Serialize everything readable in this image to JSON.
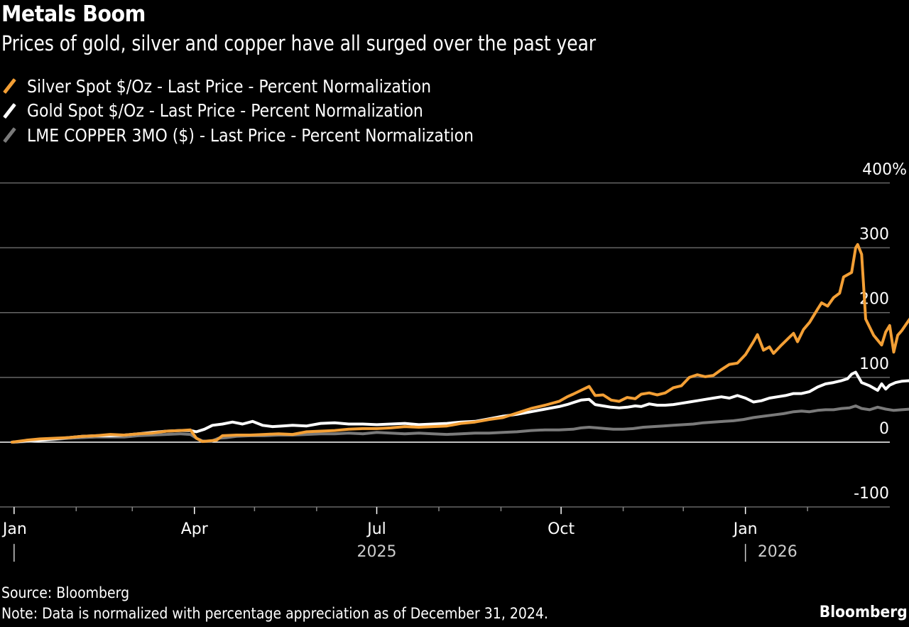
{
  "header": {
    "title": "Metals Boom",
    "subtitle": "Prices of gold, silver and copper have all surged over the past year"
  },
  "footer": {
    "source": "Source: Bloomberg",
    "note": "Note: Data is normalized with percentage appreciation as of December 31, 2024.",
    "brand": "Bloomberg"
  },
  "chart_data": {
    "type": "line",
    "title": "Metals Boom",
    "subtitle": "Prices of gold, silver and copper have all surged over the past year",
    "xlabel": "",
    "ylabel": "",
    "x_unit": "days since 2024-12-31",
    "xlim": [
      0,
      415
    ],
    "ylim": [
      -100,
      400
    ],
    "grid": true,
    "legend_position": "top-left",
    "y_ticks": [
      {
        "value": 400,
        "label": "400%"
      },
      {
        "value": 300,
        "label": "300"
      },
      {
        "value": 200,
        "label": "200"
      },
      {
        "value": 100,
        "label": "100"
      },
      {
        "value": 0,
        "label": "0"
      },
      {
        "value": -100,
        "label": "-100"
      }
    ],
    "x_ticks": [
      {
        "day": 1,
        "label": "Jan",
        "major": true
      },
      {
        "day": 32,
        "label": "",
        "major": false
      },
      {
        "day": 60,
        "label": "",
        "major": false
      },
      {
        "day": 91,
        "label": "Apr",
        "major": true
      },
      {
        "day": 121,
        "label": "",
        "major": false
      },
      {
        "day": 152,
        "label": "",
        "major": false
      },
      {
        "day": 182,
        "label": "Jul",
        "major": true
      },
      {
        "day": 213,
        "label": "",
        "major": false
      },
      {
        "day": 244,
        "label": "",
        "major": false
      },
      {
        "day": 274,
        "label": "Oct",
        "major": true
      },
      {
        "day": 305,
        "label": "",
        "major": false
      },
      {
        "day": 335,
        "label": "",
        "major": false
      },
      {
        "day": 366,
        "label": "Jan",
        "major": true
      },
      {
        "day": 397,
        "label": "",
        "major": false
      }
    ],
    "year_labels": [
      {
        "day": 182,
        "label": "2025"
      },
      {
        "day": 382,
        "label": "2026"
      }
    ],
    "year_separators": [
      1,
      366
    ],
    "series": [
      {
        "name": "Silver Spot $/Oz - Last Price - Percent Normalization",
        "color": "#f39f35",
        "points": [
          [
            0,
            0
          ],
          [
            7,
            3
          ],
          [
            14,
            5
          ],
          [
            21,
            6
          ],
          [
            28,
            7
          ],
          [
            35,
            9
          ],
          [
            42,
            10
          ],
          [
            49,
            12
          ],
          [
            56,
            11
          ],
          [
            63,
            13
          ],
          [
            70,
            14
          ],
          [
            77,
            17
          ],
          [
            84,
            18
          ],
          [
            89,
            19
          ],
          [
            92,
            6
          ],
          [
            95,
            1
          ],
          [
            98,
            2
          ],
          [
            102,
            3
          ],
          [
            105,
            10
          ],
          [
            112,
            11
          ],
          [
            119,
            11
          ],
          [
            126,
            12
          ],
          [
            133,
            13
          ],
          [
            140,
            12
          ],
          [
            147,
            16
          ],
          [
            154,
            17
          ],
          [
            161,
            18
          ],
          [
            168,
            20
          ],
          [
            175,
            21
          ],
          [
            182,
            21
          ],
          [
            189,
            22
          ],
          [
            196,
            24
          ],
          [
            203,
            23
          ],
          [
            210,
            24
          ],
          [
            217,
            25
          ],
          [
            224,
            29
          ],
          [
            231,
            31
          ],
          [
            238,
            35
          ],
          [
            245,
            38
          ],
          [
            252,
            45
          ],
          [
            259,
            52
          ],
          [
            266,
            57
          ],
          [
            273,
            63
          ],
          [
            277,
            70
          ],
          [
            280,
            74
          ],
          [
            284,
            80
          ],
          [
            288,
            86
          ],
          [
            291,
            72
          ],
          [
            295,
            73
          ],
          [
            299,
            65
          ],
          [
            303,
            63
          ],
          [
            307,
            69
          ],
          [
            311,
            67
          ],
          [
            314,
            74
          ],
          [
            318,
            76
          ],
          [
            322,
            73
          ],
          [
            326,
            76
          ],
          [
            330,
            84
          ],
          [
            334,
            87
          ],
          [
            338,
            100
          ],
          [
            342,
            104
          ],
          [
            346,
            101
          ],
          [
            350,
            103
          ],
          [
            354,
            112
          ],
          [
            358,
            120
          ],
          [
            362,
            122
          ],
          [
            366,
            135
          ],
          [
            370,
            155
          ],
          [
            372,
            166
          ],
          [
            375,
            142
          ],
          [
            378,
            147
          ],
          [
            380,
            137
          ],
          [
            384,
            150
          ],
          [
            388,
            162
          ],
          [
            390,
            168
          ],
          [
            392,
            155
          ],
          [
            395,
            174
          ],
          [
            398,
            185
          ],
          [
            402,
            205
          ],
          [
            404,
            215
          ],
          [
            407,
            210
          ],
          [
            410,
            223
          ],
          [
            413,
            230
          ],
          [
            415,
            255
          ],
          [
            419,
            262
          ],
          [
            421,
            300
          ],
          [
            422,
            305
          ],
          [
            424,
            290
          ],
          [
            426,
            190
          ],
          [
            430,
            165
          ],
          [
            434,
            150
          ],
          [
            436,
            170
          ],
          [
            438,
            180
          ],
          [
            440,
            139
          ],
          [
            442,
            165
          ],
          [
            444,
            172
          ],
          [
            448,
            190
          ],
          [
            450,
            178
          ],
          [
            452,
            180
          ],
          [
            453,
            165
          ],
          [
            454,
            180
          ],
          [
            455,
            158
          ],
          [
            458,
            165
          ],
          [
            460,
            165
          ],
          [
            462,
            157
          ]
        ]
      },
      {
        "name": "Gold Spot $/Oz - Last Price - Percent Normalization",
        "color": "#ffffff",
        "points": [
          [
            0,
            0
          ],
          [
            7,
            2
          ],
          [
            14,
            3
          ],
          [
            21,
            5
          ],
          [
            28,
            7
          ],
          [
            35,
            9
          ],
          [
            42,
            10
          ],
          [
            49,
            10
          ],
          [
            56,
            11
          ],
          [
            63,
            13
          ],
          [
            70,
            15
          ],
          [
            77,
            17
          ],
          [
            84,
            18
          ],
          [
            89,
            18
          ],
          [
            92,
            16
          ],
          [
            96,
            20
          ],
          [
            100,
            26
          ],
          [
            105,
            28
          ],
          [
            110,
            31
          ],
          [
            115,
            28
          ],
          [
            120,
            32
          ],
          [
            125,
            26
          ],
          [
            130,
            24
          ],
          [
            135,
            25
          ],
          [
            140,
            26
          ],
          [
            147,
            25
          ],
          [
            154,
            29
          ],
          [
            161,
            30
          ],
          [
            168,
            28
          ],
          [
            175,
            28
          ],
          [
            182,
            27
          ],
          [
            189,
            28
          ],
          [
            196,
            29
          ],
          [
            203,
            27
          ],
          [
            210,
            28
          ],
          [
            217,
            29
          ],
          [
            224,
            31
          ],
          [
            231,
            32
          ],
          [
            238,
            36
          ],
          [
            245,
            40
          ],
          [
            252,
            43
          ],
          [
            259,
            47
          ],
          [
            266,
            51
          ],
          [
            273,
            55
          ],
          [
            277,
            58
          ],
          [
            280,
            61
          ],
          [
            284,
            65
          ],
          [
            288,
            66
          ],
          [
            291,
            58
          ],
          [
            295,
            56
          ],
          [
            299,
            54
          ],
          [
            303,
            53
          ],
          [
            307,
            54
          ],
          [
            311,
            56
          ],
          [
            314,
            55
          ],
          [
            318,
            59
          ],
          [
            322,
            57
          ],
          [
            326,
            57
          ],
          [
            330,
            58
          ],
          [
            334,
            60
          ],
          [
            338,
            62
          ],
          [
            342,
            64
          ],
          [
            346,
            66
          ],
          [
            350,
            68
          ],
          [
            354,
            70
          ],
          [
            358,
            68
          ],
          [
            362,
            72
          ],
          [
            366,
            68
          ],
          [
            370,
            62
          ],
          [
            374,
            64
          ],
          [
            378,
            68
          ],
          [
            382,
            70
          ],
          [
            386,
            72
          ],
          [
            390,
            75
          ],
          [
            394,
            75
          ],
          [
            398,
            78
          ],
          [
            402,
            85
          ],
          [
            406,
            90
          ],
          [
            410,
            92
          ],
          [
            414,
            95
          ],
          [
            417,
            98
          ],
          [
            419,
            105
          ],
          [
            421,
            108
          ],
          [
            424,
            92
          ],
          [
            428,
            87
          ],
          [
            432,
            80
          ],
          [
            434,
            90
          ],
          [
            436,
            82
          ],
          [
            438,
            88
          ],
          [
            441,
            92
          ],
          [
            444,
            94
          ],
          [
            448,
            95
          ],
          [
            450,
            90
          ],
          [
            452,
            93
          ],
          [
            455,
            92
          ],
          [
            458,
            91
          ],
          [
            462,
            87
          ]
        ]
      },
      {
        "name": "LME COPPER 3MO ($) - Last Price - Percent Normalization",
        "color": "#7a7a7a",
        "points": [
          [
            0,
            0
          ],
          [
            7,
            1
          ],
          [
            14,
            3
          ],
          [
            21,
            4
          ],
          [
            28,
            6
          ],
          [
            35,
            7
          ],
          [
            42,
            8
          ],
          [
            49,
            8
          ],
          [
            56,
            8
          ],
          [
            63,
            10
          ],
          [
            70,
            11
          ],
          [
            77,
            12
          ],
          [
            84,
            13
          ],
          [
            89,
            12
          ],
          [
            92,
            6
          ],
          [
            95,
            2
          ],
          [
            99,
            1
          ],
          [
            103,
            6
          ],
          [
            107,
            7
          ],
          [
            112,
            9
          ],
          [
            119,
            10
          ],
          [
            126,
            10
          ],
          [
            133,
            11
          ],
          [
            140,
            11
          ],
          [
            147,
            12
          ],
          [
            154,
            13
          ],
          [
            161,
            13
          ],
          [
            168,
            14
          ],
          [
            175,
            13
          ],
          [
            182,
            15
          ],
          [
            189,
            14
          ],
          [
            196,
            13
          ],
          [
            203,
            14
          ],
          [
            210,
            13
          ],
          [
            217,
            12
          ],
          [
            224,
            13
          ],
          [
            231,
            14
          ],
          [
            238,
            14
          ],
          [
            245,
            15
          ],
          [
            252,
            16
          ],
          [
            259,
            18
          ],
          [
            266,
            19
          ],
          [
            273,
            19
          ],
          [
            280,
            20
          ],
          [
            284,
            22
          ],
          [
            288,
            23
          ],
          [
            292,
            22
          ],
          [
            296,
            21
          ],
          [
            300,
            20
          ],
          [
            305,
            20
          ],
          [
            310,
            21
          ],
          [
            315,
            23
          ],
          [
            320,
            24
          ],
          [
            325,
            25
          ],
          [
            330,
            26
          ],
          [
            335,
            27
          ],
          [
            340,
            28
          ],
          [
            345,
            30
          ],
          [
            350,
            31
          ],
          [
            355,
            32
          ],
          [
            360,
            33
          ],
          [
            365,
            35
          ],
          [
            370,
            38
          ],
          [
            375,
            40
          ],
          [
            380,
            42
          ],
          [
            385,
            44
          ],
          [
            390,
            47
          ],
          [
            394,
            48
          ],
          [
            398,
            47
          ],
          [
            402,
            49
          ],
          [
            406,
            50
          ],
          [
            410,
            50
          ],
          [
            414,
            52
          ],
          [
            418,
            53
          ],
          [
            421,
            56
          ],
          [
            424,
            52
          ],
          [
            428,
            50
          ],
          [
            432,
            54
          ],
          [
            436,
            51
          ],
          [
            440,
            49
          ],
          [
            444,
            50
          ],
          [
            448,
            51
          ],
          [
            452,
            49
          ],
          [
            456,
            48
          ],
          [
            460,
            48
          ],
          [
            462,
            47
          ]
        ]
      }
    ]
  }
}
